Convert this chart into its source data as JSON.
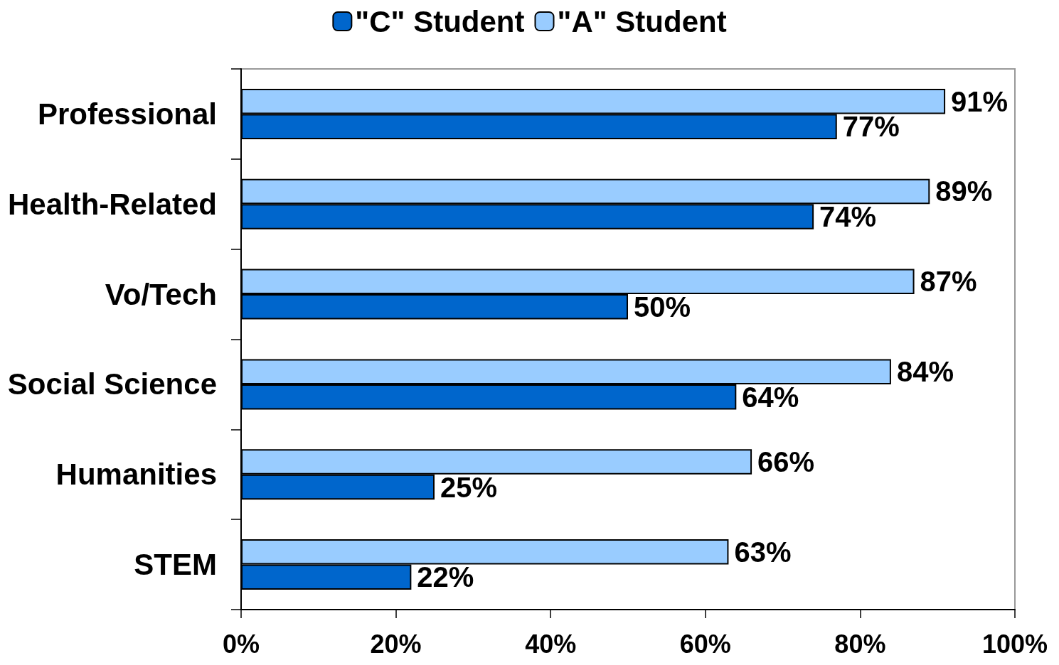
{
  "chart_data": {
    "type": "bar",
    "orientation": "horizontal",
    "categories": [
      "Professional",
      "Health-Related",
      "Vo/Tech",
      "Social Science",
      "Humanities",
      "STEM"
    ],
    "series": [
      {
        "name": "\"C\" Student",
        "color": "#0066cc",
        "values": [
          77,
          74,
          50,
          64,
          25,
          22
        ],
        "value_labels": [
          "77%",
          "74%",
          "50%",
          "64%",
          "25%",
          "22%"
        ]
      },
      {
        "name": "\"A\" Student",
        "color": "#99ccff",
        "values": [
          91,
          89,
          87,
          84,
          66,
          63
        ],
        "value_labels": [
          "91%",
          "89%",
          "87%",
          "84%",
          "66%",
          "63%"
        ]
      }
    ],
    "xlim": [
      0,
      100
    ],
    "xticks": [
      {
        "value": 0,
        "label": "0%"
      },
      {
        "value": 20,
        "label": "20%"
      },
      {
        "value": 40,
        "label": "40%"
      },
      {
        "value": 60,
        "label": "60%"
      },
      {
        "value": 80,
        "label": "80%"
      },
      {
        "value": 100,
        "label": "100%"
      }
    ],
    "legend": "top",
    "grid": false
  }
}
